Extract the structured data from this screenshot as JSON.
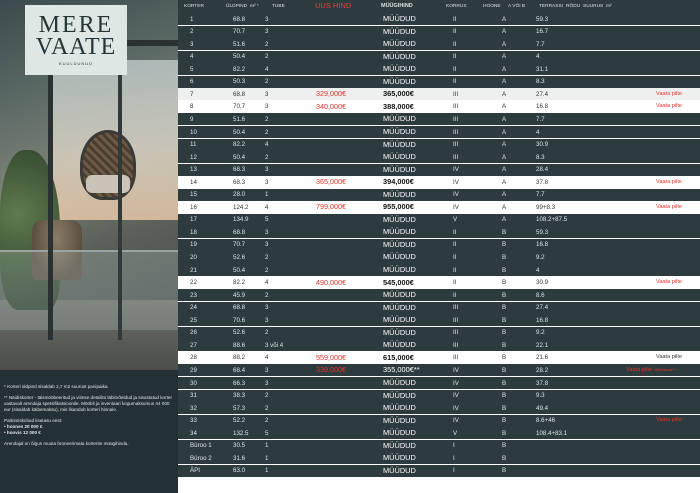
{
  "logo": {
    "line1": "MERE",
    "line2": "VAATE",
    "line3": "KUULDUNUD"
  },
  "notes": {
    "n1": "* Korteri üldpind sisaldab 2,7 m2 suurust panipaika.",
    "n2": "** Näidiskorter - täismööbeeritud ja viimse detailini läbimõeldud ja sisustatud korter vastavalt arendaja spetsifikatsioonile. Mööbli ja inventaari kogumaksumus 44 000 eur (sisaldab käibemaksu), mis lisandub korteri hinnale.",
    "n3": "Parkimiskohad lisatasu eest:",
    "n3a": "• hoones 20 000 €",
    "n3b": "• hoovis 12 000 €",
    "n4": "Arendajal on õigus muuta broneerimata korterite müügihinda."
  },
  "header": {
    "korter": "KORTER",
    "uldpind": "ÜLDPIND",
    "m2": "m² *",
    "tube": "TUBE",
    "uus_hind": "UUS HIND",
    "muugihind": "MÜÜGIHIND",
    "korrus": "KORRUS",
    "hoone": "HOONE",
    "a_voi_b": "A VÕI B",
    "terrass": "TERRASSI",
    "rodu": "RÕDU",
    "suurus": "SUURUS",
    "m2b": "m²"
  },
  "rows": [
    {
      "k": "1",
      "u": "68.8",
      "t": "3",
      "n": "",
      "m": "MÜÜDUD",
      "kor": "II",
      "h": "A",
      "r": "59.3",
      "v": "",
      "s": "sold"
    },
    {
      "k": "2",
      "u": "70.7",
      "t": "3",
      "n": "",
      "m": "MÜÜDUD",
      "kor": "II",
      "h": "A",
      "r": "16.7",
      "v": "",
      "s": "sold"
    },
    {
      "k": "3",
      "u": "51.6",
      "t": "2",
      "n": "",
      "m": "MÜÜDUD",
      "kor": "II",
      "h": "A",
      "r": "7.7",
      "v": "",
      "s": "sold"
    },
    {
      "k": "4",
      "u": "50.4",
      "t": "2",
      "n": "",
      "m": "MÜÜDUD",
      "kor": "II",
      "h": "A",
      "r": "4",
      "v": "",
      "s": "sold"
    },
    {
      "k": "5",
      "u": "82.2",
      "t": "4",
      "n": "",
      "m": "MÜÜDUD",
      "kor": "II",
      "h": "A",
      "r": "31.1",
      "v": "",
      "s": "sold"
    },
    {
      "k": "6",
      "u": "50.3",
      "t": "2",
      "n": "",
      "m": "MÜÜDUD",
      "kor": "II",
      "h": "A",
      "r": "8.3",
      "v": "",
      "s": "sold"
    },
    {
      "k": "7",
      "u": "68.8",
      "t": "3",
      "n": "329,000€",
      "m": "365,000€",
      "kor": "III",
      "h": "A",
      "r": "27.4",
      "v": "Vaata pilte",
      "s": "avail"
    },
    {
      "k": "8",
      "u": "70.7",
      "t": "3",
      "n": "340,000€",
      "m": "388,000€",
      "kor": "III",
      "h": "A",
      "r": "16.8",
      "v": "Vaata pilte",
      "s": "avail"
    },
    {
      "k": "9",
      "u": "51.6",
      "t": "2",
      "n": "",
      "m": "MÜÜDUD",
      "kor": "III",
      "h": "A",
      "r": "7.7",
      "v": "",
      "s": "sold"
    },
    {
      "k": "10",
      "u": "50.4",
      "t": "2",
      "n": "",
      "m": "MÜÜDUD",
      "kor": "III",
      "h": "A",
      "r": "4",
      "v": "",
      "s": "sold"
    },
    {
      "k": "11",
      "u": "82.2",
      "t": "4",
      "n": "",
      "m": "MÜÜDUD",
      "kor": "III",
      "h": "A",
      "r": "30.9",
      "v": "",
      "s": "sold"
    },
    {
      "k": "12",
      "u": "50.4",
      "t": "2",
      "n": "",
      "m": "MÜÜDUD",
      "kor": "III",
      "h": "A",
      "r": "8.3",
      "v": "",
      "s": "sold"
    },
    {
      "k": "13",
      "u": "68.3",
      "t": "3",
      "n": "",
      "m": "MÜÜDUD",
      "kor": "IV",
      "h": "A",
      "r": "28.4",
      "v": "",
      "s": "sold"
    },
    {
      "k": "14",
      "u": "68.3",
      "t": "3",
      "n": "365,000€",
      "m": "394,000€",
      "kor": "IV",
      "h": "A",
      "r": "37.8",
      "v": "Vaata pilte",
      "s": "avail"
    },
    {
      "k": "15",
      "u": "28.0",
      "t": "1",
      "n": "",
      "m": "MÜÜDUD",
      "kor": "IV",
      "h": "A",
      "r": "7.7",
      "v": "",
      "s": "sold"
    },
    {
      "k": "16",
      "u": "124.2",
      "t": "4",
      "n": "799,000€",
      "m": "955,000€",
      "kor": "IV",
      "h": "A",
      "r": "99+8.3",
      "v": "Vaata pilte",
      "s": "avail"
    },
    {
      "k": "17",
      "u": "134.9",
      "t": "5",
      "n": "",
      "m": "MÜÜDUD",
      "kor": "V",
      "h": "A",
      "r": "108.2+87.5",
      "v": "",
      "s": "sold"
    },
    {
      "k": "18",
      "u": "68.8",
      "t": "3",
      "n": "",
      "m": "MÜÜDUD",
      "kor": "II",
      "h": "B",
      "r": "59.3",
      "v": "",
      "s": "sold"
    },
    {
      "k": "19",
      "u": "70.7",
      "t": "3",
      "n": "",
      "m": "MÜÜDUD",
      "kor": "II",
      "h": "B",
      "r": "16.8",
      "v": "",
      "s": "sold"
    },
    {
      "k": "20",
      "u": "52.6",
      "t": "2",
      "n": "",
      "m": "MÜÜDUD",
      "kor": "II",
      "h": "B",
      "r": "9.2",
      "v": "",
      "s": "sold"
    },
    {
      "k": "21",
      "u": "50.4",
      "t": "2",
      "n": "",
      "m": "MÜÜDUD",
      "kor": "II",
      "h": "B",
      "r": "4",
      "v": "",
      "s": "sold"
    },
    {
      "k": "22",
      "u": "82.2",
      "t": "4",
      "n": "490,000€",
      "m": "545,000€",
      "kor": "II",
      "h": "B",
      "r": "30.9",
      "v": "Vaata pilte",
      "s": "avail"
    },
    {
      "k": "23",
      "u": "45.9",
      "t": "2",
      "n": "",
      "m": "MÜÜDUD",
      "kor": "II",
      "h": "B",
      "r": "8.6",
      "v": "",
      "s": "sold"
    },
    {
      "k": "24",
      "u": "68.8",
      "t": "3",
      "n": "",
      "m": "MÜÜDUD",
      "kor": "III",
      "h": "B",
      "r": "27.4",
      "v": "",
      "s": "sold"
    },
    {
      "k": "25",
      "u": "70.6",
      "t": "3",
      "n": "",
      "m": "MÜÜDUD",
      "kor": "III",
      "h": "B",
      "r": "16.8",
      "v": "",
      "s": "sold"
    },
    {
      "k": "26",
      "u": "52.6",
      "t": "2",
      "n": "",
      "m": "MÜÜDUD",
      "kor": "III",
      "h": "B",
      "r": "9.2",
      "v": "",
      "s": "sold"
    },
    {
      "k": "27",
      "u": "88.6",
      "t": "3 või 4",
      "n": "",
      "m": "MÜÜDUD",
      "kor": "III",
      "h": "B",
      "r": "22.1",
      "v": "",
      "s": "sold"
    },
    {
      "k": "28",
      "u": "88.2",
      "t": "4",
      "n": "559,000€",
      "m": "615,000€",
      "kor": "III",
      "h": "B",
      "r": "21.6",
      "v": "Vaata pilte",
      "vdark": true,
      "s": "avail"
    },
    {
      "k": "29",
      "u": "68.4",
      "t": "3",
      "n": "339,000€",
      "m": "355,000€**",
      "kor": "IV",
      "h": "B",
      "r": "28.2",
      "v": "Vaata pilte",
      "vsmall": "Näidiskorter**",
      "s": "sold"
    },
    {
      "k": "30",
      "u": "66.3",
      "t": "3",
      "n": "",
      "m": "MÜÜDUD",
      "kor": "IV",
      "h": "B",
      "r": "37.8",
      "v": "",
      "s": "sold"
    },
    {
      "k": "31",
      "u": "38.3",
      "t": "2",
      "n": "",
      "m": "MÜÜDUD",
      "kor": "IV",
      "h": "B",
      "r": "9.3",
      "v": "",
      "s": "sold"
    },
    {
      "k": "32",
      "u": "57.3",
      "t": "2",
      "n": "",
      "m": "MÜÜDUD",
      "kor": "IV",
      "h": "B",
      "r": "49.4",
      "v": "",
      "s": "sold"
    },
    {
      "k": "33",
      "u": "52.2",
      "t": "2",
      "n": "",
      "m": "MÜÜDUD",
      "kor": "IV",
      "h": "B",
      "r": "8.6+46",
      "v": "Vaata pilte",
      "s": "sold"
    },
    {
      "k": "34",
      "u": "132.5",
      "t": "5",
      "n": "",
      "m": "MÜÜDUD",
      "kor": "V",
      "h": "B",
      "r": "108.4+83.1",
      "v": "",
      "s": "sold"
    },
    {
      "k": "Büroo 1",
      "u": "30.5",
      "t": "1",
      "n": "",
      "m": "MÜÜDUD",
      "kor": "I",
      "h": "B",
      "r": "",
      "v": "",
      "s": "sold"
    },
    {
      "k": "Büroo 2",
      "u": "31.6",
      "t": "1",
      "n": "",
      "m": "MÜÜDUD",
      "kor": "I",
      "h": "B",
      "r": "",
      "v": "",
      "s": "sold"
    },
    {
      "k": "ÄPI",
      "u": "63.0",
      "t": "1",
      "n": "",
      "m": "MÜÜDUD",
      "kor": "I",
      "h": "B",
      "r": "",
      "v": "",
      "s": "sold"
    }
  ]
}
